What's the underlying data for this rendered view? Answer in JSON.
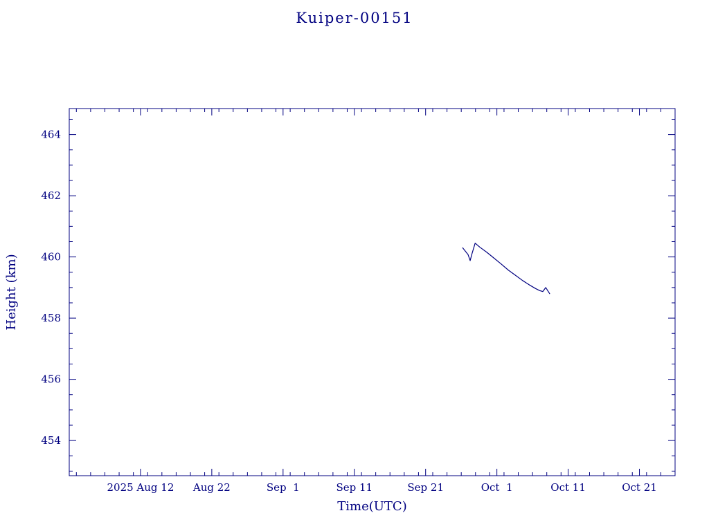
{
  "page": {
    "background": "#ffffff"
  },
  "colors": {
    "ink": "#000080"
  },
  "chart_data": {
    "type": "line",
    "title": "Kuiper-00151",
    "xlabel": "Time(UTC)",
    "ylabel": "Height (km)",
    "x_unit": "days since 2025-08-01",
    "xlim": [
      1,
      86
    ],
    "ylim": [
      452.85,
      464.85
    ],
    "grid": false,
    "legend": "none",
    "x_major_ticks": [
      {
        "value": 11,
        "label": "2025 Aug 12"
      },
      {
        "value": 21,
        "label": "Aug 22"
      },
      {
        "value": 31,
        "label": "Sep  1"
      },
      {
        "value": 41,
        "label": "Sep 11"
      },
      {
        "value": 51,
        "label": "Sep 21"
      },
      {
        "value": 61,
        "label": "Oct  1"
      },
      {
        "value": 71,
        "label": "Oct 11"
      },
      {
        "value": 81,
        "label": "Oct 21"
      }
    ],
    "x_minor_step": 2,
    "y_major_ticks": [
      {
        "value": 454,
        "label": "454"
      },
      {
        "value": 456,
        "label": "456"
      },
      {
        "value": 458,
        "label": "458"
      },
      {
        "value": 460,
        "label": "460"
      },
      {
        "value": 462,
        "label": "462"
      },
      {
        "value": 464,
        "label": "464"
      }
    ],
    "y_minor_step": 0.5,
    "series": [
      {
        "name": "height",
        "color": "#000080",
        "x": [
          56.2,
          56.6,
          56.95,
          57.25,
          57.5,
          57.95,
          58.6,
          59.6,
          60.6,
          61.6,
          62.6,
          63.6,
          64.6,
          65.6,
          66.4,
          67.0,
          67.45,
          67.85,
          68.4
        ],
        "y": [
          460.3,
          460.18,
          460.08,
          459.88,
          460.1,
          460.45,
          460.32,
          460.15,
          459.96,
          459.77,
          459.57,
          459.4,
          459.23,
          459.08,
          458.97,
          458.9,
          458.87,
          459.0,
          458.8
        ]
      }
    ]
  }
}
